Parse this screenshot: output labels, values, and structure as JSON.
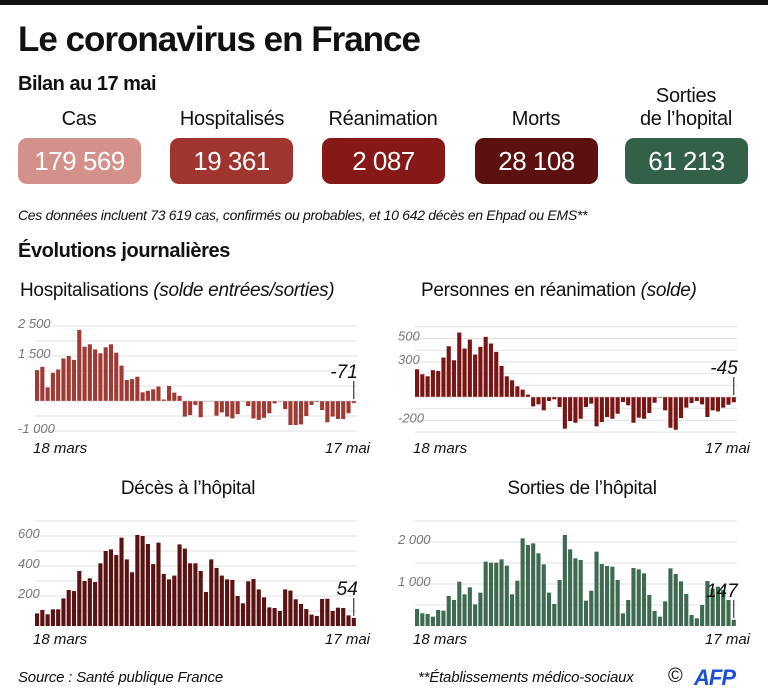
{
  "header": {
    "title": "Le coronavirus en France",
    "subtitle": "Bilan au 17 mai"
  },
  "kpis": [
    {
      "label": "Cas",
      "value": "179 569",
      "color": "#d4908a"
    },
    {
      "label": "Hospitalisés",
      "value": "19 361",
      "color": "#a03530"
    },
    {
      "label": "Réanimation",
      "value": "2 087",
      "color": "#861818"
    },
    {
      "label": "Morts",
      "value": "28 108",
      "color": "#5c1010"
    },
    {
      "label_line1": "Sorties",
      "label_line2": "de l’hopital",
      "value": "61 213",
      "color": "#336048"
    }
  ],
  "note": "Ces données incluent 73 619 cas, confirmés ou probables, et 10 642 décès en Ehpad ou EMS**",
  "section_title": "Évolutions journalières",
  "footer": {
    "source": "Source : Santé publique France",
    "footnote": "**Établissements médico-sociaux",
    "copyright": "©",
    "logo": "AFP"
  },
  "chart_data": [
    {
      "type": "bar",
      "title": "Hospitalisations",
      "subtitle": "(solde entrées/sorties)",
      "color": "#a03a35",
      "x_start": "18 mars",
      "x_end": "17 mai",
      "ticks": [
        {
          "value": 2500,
          "label": "2 500"
        },
        {
          "value": 1500,
          "label": "1 500"
        },
        {
          "value": -1000,
          "label": "-1 000"
        }
      ],
      "ylim": [
        -1000,
        2500
      ],
      "last_label": "-71",
      "values": [
        1030,
        1140,
        455,
        940,
        1050,
        1420,
        1500,
        1370,
        2370,
        1810,
        1890,
        1720,
        1590,
        1790,
        1890,
        1610,
        1180,
        700,
        730,
        810,
        290,
        340,
        390,
        480,
        50,
        500,
        280,
        170,
        -520,
        -470,
        -130,
        -540,
        -10,
        -10,
        -490,
        -380,
        -520,
        -580,
        -440,
        -10,
        -170,
        -580,
        -630,
        -560,
        -410,
        -80,
        -10,
        -270,
        -800,
        -800,
        -780,
        -500,
        -130,
        -30,
        -300,
        -710,
        -520,
        -600,
        -600,
        -410,
        -71
      ]
    },
    {
      "type": "bar",
      "title": "Personnes en réanimation",
      "subtitle": "(solde)",
      "color": "#7a1515",
      "x_start": "18 mars",
      "x_end": "17 mai",
      "ticks": [
        {
          "value": 500,
          "label": "500"
        },
        {
          "value": 300,
          "label": "300"
        },
        {
          "value": -200,
          "label": "-200"
        }
      ],
      "ylim": [
        -300,
        600
      ],
      "last_label": "-45",
      "values": [
        237,
        194,
        177,
        229,
        223,
        337,
        434,
        314,
        551,
        414,
        491,
        363,
        429,
        514,
        457,
        386,
        266,
        177,
        143,
        91,
        63,
        20,
        -80,
        -63,
        -114,
        -34,
        -20,
        -86,
        -271,
        -206,
        -220,
        -186,
        -86,
        -57,
        -251,
        -214,
        -171,
        -186,
        -143,
        -43,
        -71,
        -220,
        -177,
        -186,
        -137,
        -49,
        -6,
        -114,
        -263,
        -280,
        -180,
        -91,
        -51,
        -34,
        -63,
        -171,
        -114,
        -123,
        -91,
        -66,
        -45
      ]
    },
    {
      "type": "bar",
      "title": "Décès à l’hôpital",
      "subtitle": "",
      "color": "#5a1212",
      "x_start": "18 mars",
      "x_end": "17 mai",
      "ticks": [
        {
          "value": 600,
          "label": "600"
        },
        {
          "value": 400,
          "label": "400"
        },
        {
          "value": 200,
          "label": "200"
        }
      ],
      "ylim": [
        0,
        700
      ],
      "last_label": "54",
      "values": [
        84,
        107,
        78,
        111,
        111,
        184,
        240,
        233,
        367,
        300,
        318,
        293,
        418,
        500,
        511,
        473,
        589,
        444,
        358,
        607,
        600,
        547,
        413,
        556,
        347,
        311,
        336,
        544,
        516,
        418,
        418,
        367,
        227,
        444,
        387,
        336,
        311,
        307,
        200,
        151,
        298,
        313,
        244,
        191,
        124,
        120,
        100,
        244,
        236,
        178,
        147,
        113,
        76,
        67,
        180,
        182,
        100,
        122,
        120,
        71,
        54
      ]
    },
    {
      "type": "bar",
      "title": "Sorties de l’hôpital",
      "subtitle": "",
      "color": "#3e6a50",
      "x_start": "18 mars",
      "x_end": "17 mai",
      "ticks": [
        {
          "value": 2000,
          "label": "2 000"
        },
        {
          "value": 1000,
          "label": "1 000"
        }
      ],
      "ylim": [
        0,
        2500
      ],
      "last_label": "147",
      "values": [
        405,
        302,
        286,
        222,
        381,
        365,
        714,
        619,
        1056,
        754,
        921,
        516,
        794,
        1532,
        1508,
        1508,
        1587,
        1437,
        754,
        1079,
        2087,
        1929,
        1968,
        1730,
        1468,
        794,
        524,
        1095,
        2167,
        1825,
        1611,
        1571,
        603,
        841,
        1770,
        1476,
        1429,
        1413,
        1095,
        302,
        619,
        1381,
        1349,
        1254,
        738,
        357,
        222,
        587,
        1373,
        1238,
        1063,
        762,
        262,
        183,
        500,
        1071,
        889,
        937,
        857,
        619,
        147
      ]
    }
  ]
}
